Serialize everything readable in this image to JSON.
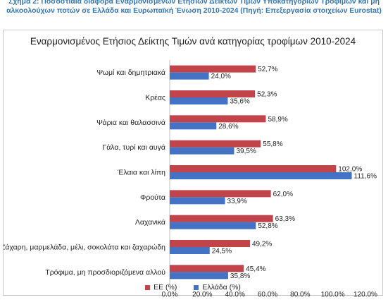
{
  "caption": "Σχήμα 2: Ποσοστιαία διαφορά Εναρμονισμένων Ετήσιων Δεικτών Τιμών Υποκατηγοριών Τροφίμων και μη αλκοολούχων ποτών σε Ελλάδα και Ευρωπαϊκή Ένωση 2010-2024 (Πηγή: Επεξεργασία στοιχείων Eurostat)",
  "colors": {
    "eu": "#c0444a",
    "greece": "#4472c4",
    "caption": "#3476b5"
  },
  "chart_data": {
    "type": "bar",
    "orientation": "horizontal",
    "title": "Εναρμονισμένος Ετήσιος Δείκτης Τιμών ανά κατηγορίας τροφίμων 2010-2024",
    "categories": [
      "Ψωμί και δημητριακά",
      "Κρέας",
      "Ψάρια και θαλασσινά",
      "Γάλα, τυρί και αυγά",
      "Έλαια και λίπη",
      "Φρούτα",
      "Λαχανικά",
      "Ζάχαρη, μαρμελάδα, μέλι, σοκολάτα και ζαχαρώδη",
      "Τρόφιμα, μη προσδιοριζόμενα αλλού"
    ],
    "series": [
      {
        "name": "ΕΕ (%)",
        "values": [
          52.7,
          52.3,
          58.9,
          55.8,
          102.0,
          62.0,
          63.3,
          49.2,
          45.4
        ],
        "labels": [
          "52,7%",
          "52,3%",
          "58,9%",
          "55,8%",
          "102,0%",
          "62,0%",
          "63,3%",
          "49,2%",
          "45,4%"
        ]
      },
      {
        "name": "Ελλάδα (%)",
        "values": [
          24.0,
          35.6,
          28.6,
          39.5,
          111.6,
          33.9,
          52.8,
          24.5,
          35.8
        ],
        "labels": [
          "24,0%",
          "35,6%",
          "28,6%",
          "39,5%",
          "111,6%",
          "33,9%",
          "52,8%",
          "24,5%",
          "35,8%"
        ]
      }
    ],
    "xlim": [
      0,
      120
    ],
    "ticks": [
      "0,0%",
      "20,0%",
      "40,0%",
      "60,0%",
      "80,0%",
      "100,0%",
      "120,0%"
    ],
    "legend_position": "bottom",
    "grid": false
  }
}
